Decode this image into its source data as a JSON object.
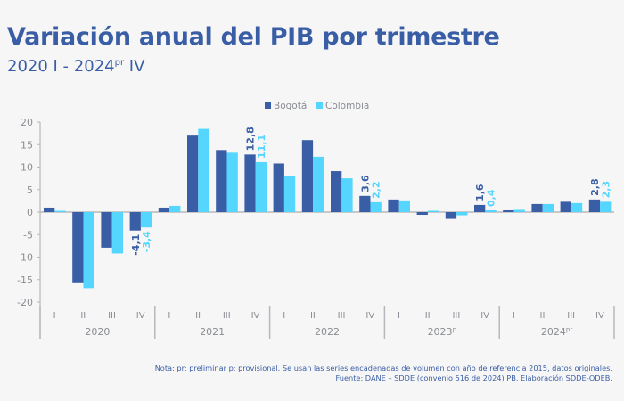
{
  "header": {
    "title": "Variación anual del PIB por trimestre",
    "subtitle_main": "2020 I - 2024",
    "subtitle_sup": "pr",
    "subtitle_end": " IV"
  },
  "colors": {
    "bogota": "#3a5ea5",
    "colombia": "#55d6ff",
    "axis": "#b8b8bc",
    "tick_text": "#8a8d93"
  },
  "chart_data": {
    "type": "bar",
    "title": "Variación anual del PIB por trimestre",
    "subtitle": "2020 I - 2024pr IV",
    "xlabel": "",
    "ylabel": "",
    "ylim": [
      -20,
      20
    ],
    "yticks": [
      20,
      15,
      10,
      5,
      0,
      -5,
      -10,
      -15,
      -20
    ],
    "legend_position": "top-center",
    "grid": false,
    "years": [
      {
        "label": "2020",
        "sup": ""
      },
      {
        "label": "2021",
        "sup": ""
      },
      {
        "label": "2022",
        "sup": ""
      },
      {
        "label": "2023",
        "sup": "p"
      },
      {
        "label": "2024",
        "sup": "pr"
      }
    ],
    "quarters": [
      "I",
      "II",
      "III",
      "IV"
    ],
    "categories": [
      "2020 I",
      "2020 II",
      "2020 III",
      "2020 IV",
      "2021 I",
      "2021 II",
      "2021 III",
      "2021 IV",
      "2022 I",
      "2022 II",
      "2022 III",
      "2022 IV",
      "2023 I",
      "2023 II",
      "2023 III",
      "2023 IV",
      "2024 I",
      "2024 II",
      "2024 III",
      "2024 IV"
    ],
    "series": [
      {
        "name": "Bogotá",
        "color": "#3a5ea5",
        "values": [
          1.0,
          -15.8,
          -7.9,
          -4.1,
          1.0,
          17.0,
          13.8,
          12.8,
          10.8,
          16.0,
          9.1,
          3.6,
          2.8,
          -0.6,
          -1.5,
          1.6,
          0.4,
          1.8,
          2.3,
          2.8
        ]
      },
      {
        "name": "Colombia",
        "color": "#55d6ff",
        "values": [
          0.3,
          -16.9,
          -9.2,
          -3.4,
          1.4,
          18.5,
          13.2,
          11.1,
          8.1,
          12.3,
          7.5,
          2.2,
          2.6,
          0.3,
          -0.7,
          0.4,
          0.5,
          1.8,
          2.0,
          2.3
        ]
      }
    ],
    "data_labels": [
      {
        "index": 3,
        "bogota": "-4,1",
        "colombia": "-3,4"
      },
      {
        "index": 7,
        "bogota": "12,8",
        "colombia": "11,1"
      },
      {
        "index": 11,
        "bogota": "3,6",
        "colombia": "2,2"
      },
      {
        "index": 15,
        "bogota": "1,6",
        "colombia": "0,4"
      },
      {
        "index": 19,
        "bogota": "2,8",
        "colombia": "2,3"
      }
    ]
  },
  "footer": {
    "note": "Nota: pr: preliminar p: provisional.  Se usan las series encadenadas de volumen con año de referencia 2015, datos originales.",
    "source": "Fuente: DANE – SDDE (convenio 516 de 2024) PB. Elaboración SDDE-ODEB."
  }
}
